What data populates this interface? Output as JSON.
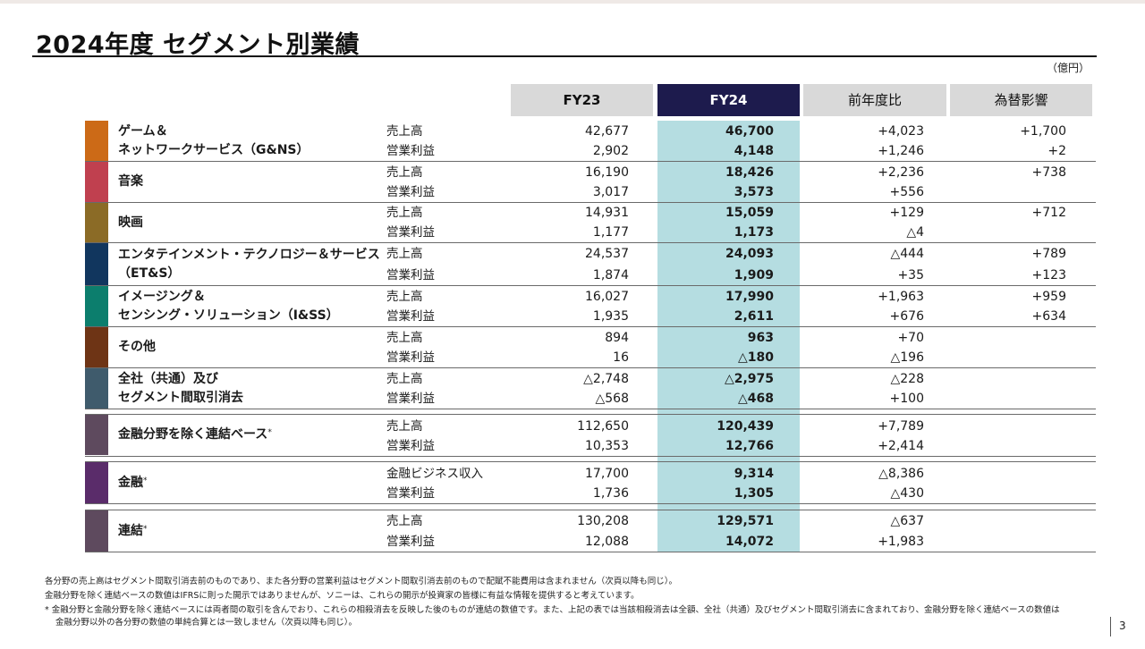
{
  "title": "2024年度 セグメント別業績",
  "unit": "（億円）",
  "headers": {
    "fy23": "FY23",
    "fy24": "FY24",
    "yoy": "前年度比",
    "fx": "為替影響"
  },
  "colors": {
    "gns": "#cc6a17",
    "music": "#c0404f",
    "pictures": "#8b6b26",
    "ets": "#11365e",
    "iss": "#0c7e6d",
    "other": "#6e3415",
    "corp": "#3f5b6c",
    "exfin": "#5e4a5e",
    "fin": "#5a2c6a",
    "consol": "#5e4a5e",
    "fy24_header": "#1d1b4d",
    "fy24_column": "#b5dde1"
  },
  "segments": [
    {
      "name_lines": [
        "ゲーム＆",
        "ネットワークサービス（G&NS）"
      ],
      "star": "",
      "rows": [
        {
          "label": "売上高",
          "fy23": "42,677",
          "fy24": "46,700",
          "yoy": "+4,023",
          "fx": "+1,700"
        },
        {
          "label": "営業利益",
          "fy23": "2,902",
          "fy24": "4,148",
          "yoy": "+1,246",
          "fx": "+2"
        }
      ]
    },
    {
      "name_lines": [
        "音楽"
      ],
      "star": "",
      "rows": [
        {
          "label": "売上高",
          "fy23": "16,190",
          "fy24": "18,426",
          "yoy": "+2,236",
          "fx": "+738"
        },
        {
          "label": "営業利益",
          "fy23": "3,017",
          "fy24": "3,573",
          "yoy": "+556",
          "fx": ""
        }
      ]
    },
    {
      "name_lines": [
        "映画"
      ],
      "star": "",
      "rows": [
        {
          "label": "売上高",
          "fy23": "14,931",
          "fy24": "15,059",
          "yoy": "+129",
          "fx": "+712"
        },
        {
          "label": "営業利益",
          "fy23": "1,177",
          "fy24": "1,173",
          "yoy": "△4",
          "fx": ""
        }
      ]
    },
    {
      "name_lines": [
        "エンタテインメント・テクノロジー＆サービス",
        "（ET&S）"
      ],
      "star": "",
      "rows": [
        {
          "label": "売上高",
          "fy23": "24,537",
          "fy24": "24,093",
          "yoy": "△444",
          "fx": "+789"
        },
        {
          "label": "営業利益",
          "fy23": "1,874",
          "fy24": "1,909",
          "yoy": "+35",
          "fx": "+123"
        }
      ]
    },
    {
      "name_lines": [
        "イメージング＆",
        "センシング・ソリューション（I&SS）"
      ],
      "star": "",
      "rows": [
        {
          "label": "売上高",
          "fy23": "16,027",
          "fy24": "17,990",
          "yoy": "+1,963",
          "fx": "+959"
        },
        {
          "label": "営業利益",
          "fy23": "1,935",
          "fy24": "2,611",
          "yoy": "+676",
          "fx": "+634"
        }
      ]
    },
    {
      "name_lines": [
        "その他"
      ],
      "star": "",
      "rows": [
        {
          "label": "売上高",
          "fy23": "894",
          "fy24": "963",
          "yoy": "+70",
          "fx": ""
        },
        {
          "label": "営業利益",
          "fy23": "16",
          "fy24": "△180",
          "yoy": "△196",
          "fx": ""
        }
      ]
    },
    {
      "name_lines": [
        "全社（共通）及び",
        "セグメント間取引消去"
      ],
      "star": "",
      "rows": [
        {
          "label": "売上高",
          "fy23": "△2,748",
          "fy24": "△2,975",
          "yoy": "△228",
          "fx": ""
        },
        {
          "label": "営業利益",
          "fy23": "△568",
          "fy24": "△468",
          "yoy": "+100",
          "fx": ""
        }
      ]
    },
    {
      "name_lines": [
        "金融分野を除く連結ベース"
      ],
      "star": "*",
      "rows": [
        {
          "label": "売上高",
          "fy23": "112,650",
          "fy24": "120,439",
          "yoy": "+7,789",
          "fx": ""
        },
        {
          "label": "営業利益",
          "fy23": "10,353",
          "fy24": "12,766",
          "yoy": "+2,414",
          "fx": ""
        }
      ]
    },
    {
      "name_lines": [
        "金融"
      ],
      "star": "*",
      "rows": [
        {
          "label": "金融ビジネス収入",
          "fy23": "17,700",
          "fy24": "9,314",
          "yoy": "△8,386",
          "fx": ""
        },
        {
          "label": "営業利益",
          "fy23": "1,736",
          "fy24": "1,305",
          "yoy": "△430",
          "fx": ""
        }
      ]
    },
    {
      "name_lines": [
        "連結"
      ],
      "star": "*",
      "rows": [
        {
          "label": "売上高",
          "fy23": "130,208",
          "fy24": "129,571",
          "yoy": "△637",
          "fx": ""
        },
        {
          "label": "営業利益",
          "fy23": "12,088",
          "fy24": "14,072",
          "yoy": "+1,983",
          "fx": ""
        }
      ]
    }
  ],
  "footnotes": [
    "各分野の売上高はセグメント間取引消去前のものであり、また各分野の営業利益はセグメント間取引消去前のもので配賦不能費用は含まれません（次頁以降も同じ）。",
    "金融分野を除く連結ベースの数値はIFRSに則った開示ではありませんが、ソニーは、これらの開示が投資家の皆様に有益な情報を提供すると考えています。",
    "*  金融分野と金融分野を除く連結ベースには両者間の取引を含んでおり、これらの相殺消去を反映した後のものが連結の数値です。また、上記の表では当該相殺消去は全額、全社（共通）及びセグメント間取引消去に含まれており、金融分野を除く連結ベースの数値は",
    "金融分野以外の各分野の数値の単純合算とは一致しません（次頁以降も同じ）。"
  ],
  "page_number": "3"
}
